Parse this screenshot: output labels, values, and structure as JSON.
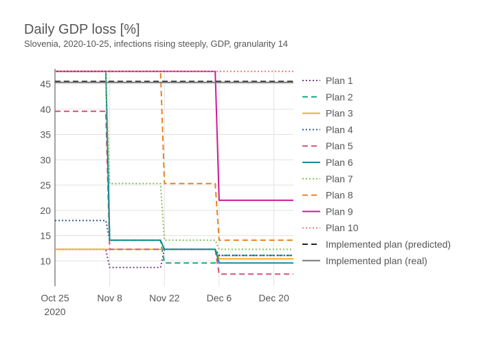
{
  "chart_data": {
    "type": "line",
    "title": "Daily GDP loss [%]",
    "subtitle": "Slovenia, 2020-10-25, infections rising steeply, GDP, granularity 14",
    "xlabel": "",
    "ylabel": "",
    "grid": true,
    "legend_position": "right",
    "xlim": [
      "2020-10-25",
      "2020-12-25"
    ],
    "ylim": [
      5,
      48
    ],
    "x_ticks": [
      {
        "value": "2020-10-25",
        "label": "Oct 25",
        "sublabel": "2020"
      },
      {
        "value": "2020-11-08",
        "label": "Nov 8",
        "sublabel": ""
      },
      {
        "value": "2020-11-22",
        "label": "Nov 22",
        "sublabel": ""
      },
      {
        "value": "2020-12-06",
        "label": "Dec 6",
        "sublabel": ""
      },
      {
        "value": "2020-12-20",
        "label": "Dec 20",
        "sublabel": ""
      }
    ],
    "y_ticks": [
      10,
      15,
      20,
      25,
      30,
      35,
      40,
      45
    ],
    "series": [
      {
        "name": "Plan 1",
        "color": "#7b3f8c",
        "dash": "dot",
        "points": [
          [
            "2020-10-25",
            12.3
          ],
          [
            "2020-11-07",
            12.3
          ],
          [
            "2020-11-08",
            8.7
          ],
          [
            "2020-11-21",
            8.7
          ],
          [
            "2020-11-22",
            12.3
          ],
          [
            "2020-12-05",
            12.3
          ],
          [
            "2020-12-06",
            11.1
          ],
          [
            "2020-12-25",
            11.1
          ]
        ]
      },
      {
        "name": "Plan 2",
        "color": "#1aa383",
        "dash": "dash",
        "points": [
          [
            "2020-10-25",
            47.5
          ],
          [
            "2020-11-07",
            47.5
          ],
          [
            "2020-11-08",
            14.1
          ],
          [
            "2020-11-21",
            14.1
          ],
          [
            "2020-11-22",
            9.6
          ],
          [
            "2020-12-05",
            9.6
          ],
          [
            "2020-12-06",
            11.1
          ],
          [
            "2020-12-25",
            11.1
          ]
        ]
      },
      {
        "name": "Plan 3",
        "color": "#f2b01e",
        "dash": "solid",
        "points": [
          [
            "2020-10-25",
            12.3
          ],
          [
            "2020-11-07",
            12.3
          ],
          [
            "2020-11-08",
            12.3
          ],
          [
            "2020-11-21",
            12.3
          ],
          [
            "2020-11-22",
            12.3
          ],
          [
            "2020-12-05",
            12.3
          ],
          [
            "2020-12-06",
            10.4
          ],
          [
            "2020-12-25",
            10.4
          ]
        ]
      },
      {
        "name": "Plan 4",
        "color": "#2b5c8a",
        "dash": "dot",
        "points": [
          [
            "2020-10-25",
            18.0
          ],
          [
            "2020-11-07",
            18.0
          ],
          [
            "2020-11-08",
            14.1
          ],
          [
            "2020-11-21",
            14.1
          ],
          [
            "2020-11-22",
            12.3
          ],
          [
            "2020-12-05",
            12.3
          ],
          [
            "2020-12-06",
            11.1
          ],
          [
            "2020-12-25",
            11.1
          ]
        ]
      },
      {
        "name": "Plan 5",
        "color": "#d94f7a",
        "dash": "dash",
        "points": [
          [
            "2020-10-25",
            39.6
          ],
          [
            "2020-11-07",
            39.6
          ],
          [
            "2020-11-08",
            12.3
          ],
          [
            "2020-11-21",
            12.3
          ],
          [
            "2020-11-22",
            12.3
          ],
          [
            "2020-12-05",
            12.3
          ],
          [
            "2020-12-06",
            7.4
          ],
          [
            "2020-12-25",
            7.4
          ]
        ]
      },
      {
        "name": "Plan 6",
        "color": "#138c92",
        "dash": "solid",
        "points": [
          [
            "2020-10-25",
            47.5
          ],
          [
            "2020-11-07",
            47.5
          ],
          [
            "2020-11-08",
            14.1
          ],
          [
            "2020-11-21",
            14.1
          ],
          [
            "2020-11-22",
            12.3
          ],
          [
            "2020-12-05",
            12.3
          ],
          [
            "2020-12-06",
            9.6
          ],
          [
            "2020-12-25",
            9.6
          ]
        ]
      },
      {
        "name": "Plan 7",
        "color": "#7cbf4a",
        "dash": "dot",
        "points": [
          [
            "2020-10-25",
            47.5
          ],
          [
            "2020-11-07",
            47.5
          ],
          [
            "2020-11-08",
            25.3
          ],
          [
            "2020-11-21",
            25.3
          ],
          [
            "2020-11-22",
            14.1
          ],
          [
            "2020-12-05",
            14.1
          ],
          [
            "2020-12-06",
            12.3
          ],
          [
            "2020-12-25",
            12.3
          ]
        ]
      },
      {
        "name": "Plan 8",
        "color": "#e8831e",
        "dash": "dash",
        "points": [
          [
            "2020-10-25",
            47.5
          ],
          [
            "2020-11-07",
            47.5
          ],
          [
            "2020-11-08",
            47.5
          ],
          [
            "2020-11-21",
            47.5
          ],
          [
            "2020-11-22",
            25.3
          ],
          [
            "2020-12-05",
            25.3
          ],
          [
            "2020-12-06",
            14.1
          ],
          [
            "2020-12-25",
            14.1
          ]
        ]
      },
      {
        "name": "Plan 9",
        "color": "#cc1a95",
        "dash": "solid",
        "points": [
          [
            "2020-10-25",
            47.5
          ],
          [
            "2020-11-07",
            47.5
          ],
          [
            "2020-11-08",
            47.5
          ],
          [
            "2020-11-21",
            47.5
          ],
          [
            "2020-11-22",
            47.5
          ],
          [
            "2020-12-05",
            47.5
          ],
          [
            "2020-12-06",
            22.0
          ],
          [
            "2020-12-25",
            22.0
          ]
        ]
      },
      {
        "name": "Plan 10",
        "color": "#f07a7a",
        "dash": "dot",
        "points": [
          [
            "2020-10-25",
            47.5
          ],
          [
            "2020-12-25",
            47.5
          ]
        ]
      },
      {
        "name": "Implemented plan (predicted)",
        "color": "#222222",
        "dash": "dash",
        "points": [
          [
            "2020-10-25",
            45.5
          ],
          [
            "2020-12-25",
            45.5
          ]
        ]
      },
      {
        "name": "Implemented plan (real)",
        "color": "#777777",
        "dash": "solid",
        "points": [
          [
            "2020-10-25",
            45.3
          ],
          [
            "2020-12-25",
            45.3
          ]
        ]
      }
    ]
  }
}
